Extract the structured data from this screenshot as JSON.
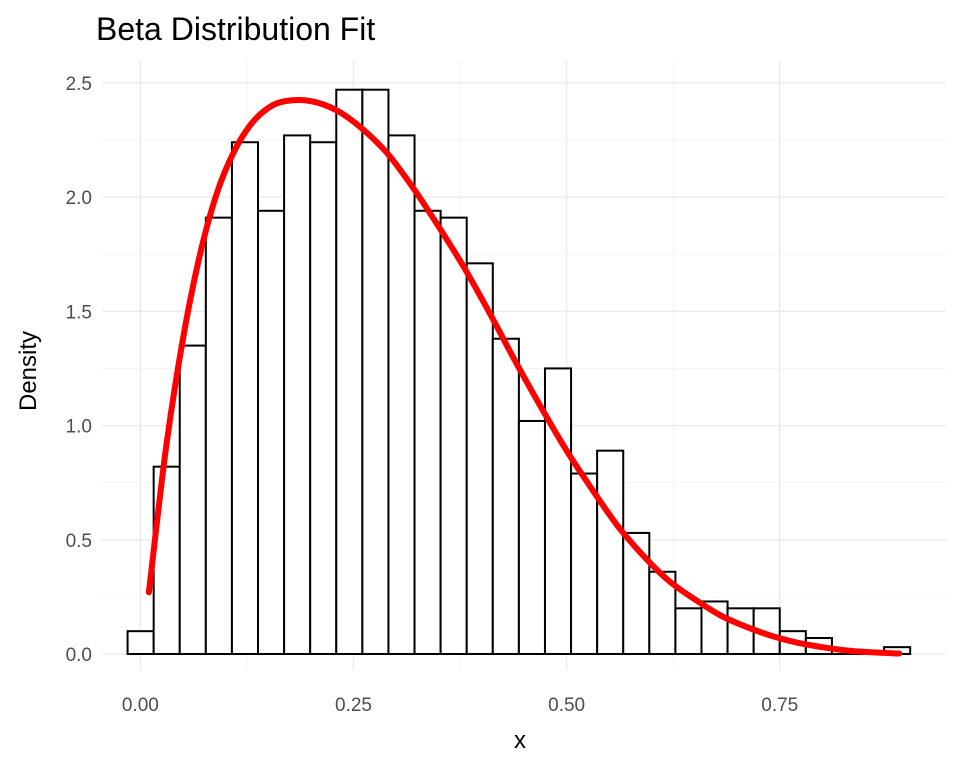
{
  "chart_data": {
    "type": "bar",
    "title": "Beta Distribution Fit",
    "xlabel": "x",
    "ylabel": "Density",
    "xlim": [
      -0.045,
      0.945
    ],
    "ylim": [
      -0.07,
      2.6
    ],
    "x_ticks": [
      0.0,
      0.25,
      0.5,
      0.75
    ],
    "x_tick_labels": [
      "0.00",
      "0.25",
      "0.50",
      "0.75"
    ],
    "y_ticks": [
      0.0,
      0.5,
      1.0,
      1.5,
      2.0,
      2.5
    ],
    "y_tick_labels": [
      "0.0",
      "0.5",
      "1.0",
      "1.5",
      "2.0",
      "2.5"
    ],
    "grid": true,
    "legend": "none",
    "histogram": {
      "bin_edges": [
        -0.015,
        0.0156,
        0.0462,
        0.0768,
        0.1074,
        0.138,
        0.1686,
        0.1992,
        0.2298,
        0.2604,
        0.291,
        0.3216,
        0.3522,
        0.3828,
        0.4134,
        0.444,
        0.4746,
        0.5052,
        0.5358,
        0.5664,
        0.597,
        0.6276,
        0.6582,
        0.6888,
        0.7194,
        0.75,
        0.7806,
        0.8112,
        0.8418,
        0.8724,
        0.903
      ],
      "densities": [
        0.1,
        0.82,
        1.35,
        1.91,
        2.24,
        1.94,
        2.27,
        2.24,
        2.47,
        2.47,
        2.27,
        1.94,
        1.91,
        1.71,
        1.38,
        1.02,
        1.25,
        0.79,
        0.89,
        0.53,
        0.36,
        0.2,
        0.23,
        0.2,
        0.2,
        0.1,
        0.07,
        0.0,
        0.0,
        0.03
      ],
      "fill_color": "#ffffff",
      "edge_color": "#000000"
    },
    "fit_curve": {
      "color": "#ff0000",
      "x": [
        0.01,
        0.03,
        0.05,
        0.07,
        0.09,
        0.11,
        0.13,
        0.15,
        0.17,
        0.2,
        0.23,
        0.26,
        0.29,
        0.32,
        0.35,
        0.38,
        0.41,
        0.44,
        0.47,
        0.5,
        0.53,
        0.56,
        0.59,
        0.62,
        0.65,
        0.68,
        0.71,
        0.74,
        0.77,
        0.8,
        0.83,
        0.86,
        0.89
      ],
      "y": [
        0.27,
        0.9,
        1.38,
        1.75,
        2.02,
        2.2,
        2.32,
        2.39,
        2.42,
        2.42,
        2.38,
        2.3,
        2.19,
        2.04,
        1.87,
        1.69,
        1.49,
        1.28,
        1.08,
        0.89,
        0.72,
        0.56,
        0.43,
        0.32,
        0.24,
        0.17,
        0.12,
        0.08,
        0.05,
        0.03,
        0.015,
        0.007,
        0.002
      ]
    }
  }
}
